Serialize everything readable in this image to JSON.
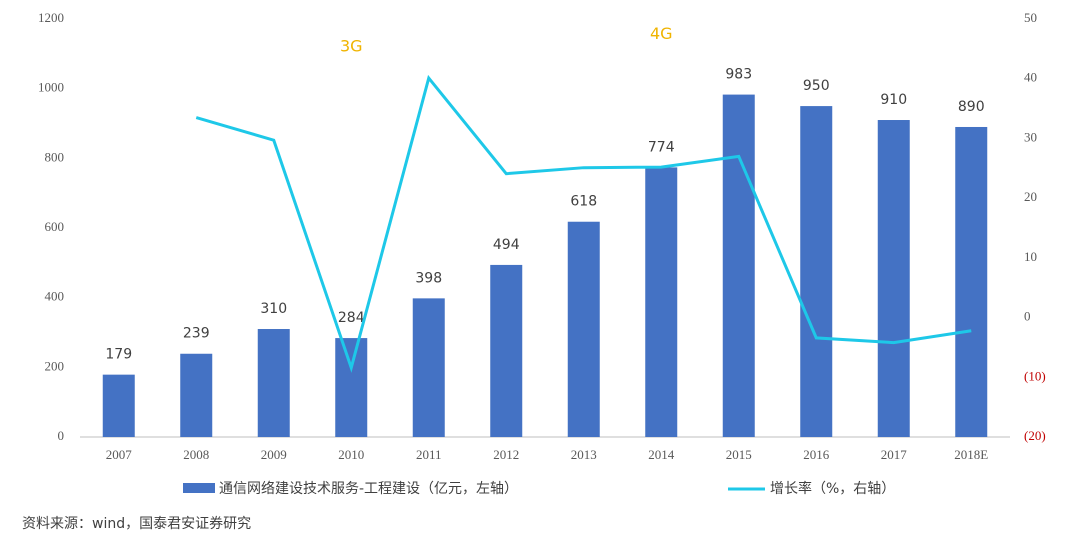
{
  "chart_data": {
    "type": "bar",
    "categories": [
      "2007",
      "2008",
      "2009",
      "2010",
      "2011",
      "2012",
      "2013",
      "2014",
      "2015",
      "2016",
      "2017",
      "2018E"
    ],
    "series": [
      {
        "name": "通信网络建设技术服务-工程建设（亿元，左轴）",
        "type": "bar",
        "color": "#4472c4",
        "values": [
          179,
          239,
          310,
          284,
          398,
          494,
          618,
          774,
          983,
          950,
          910,
          890
        ]
      },
      {
        "name": "增长率（%，右轴）",
        "type": "line",
        "axis": "y2",
        "color": "#1ec8e8",
        "values": [
          null,
          33.5,
          29.7,
          -8.4,
          40.1,
          24.1,
          25.1,
          25.2,
          27.0,
          -3.4,
          -4.2,
          -2.2
        ]
      }
    ],
    "ylim": [
      0,
      1200
    ],
    "yticks": [
      0,
      200,
      400,
      600,
      800,
      1000,
      1200
    ],
    "y2lim": [
      -20,
      50
    ],
    "y2ticks": [
      {
        "value": -20,
        "label": "(20)"
      },
      {
        "value": -10,
        "label": "(10)"
      },
      0,
      10,
      20,
      30,
      40,
      50
    ],
    "y2tick_negative_color": "#c00000",
    "annotations": [
      {
        "text": "3G",
        "x": "2010",
        "y": 1120,
        "color": "#f0b400"
      },
      {
        "text": "4G",
        "x": "2014",
        "y": 1155,
        "color": "#f0b400"
      }
    ],
    "source": "资料来源：wind，国泰君安证券研究"
  }
}
